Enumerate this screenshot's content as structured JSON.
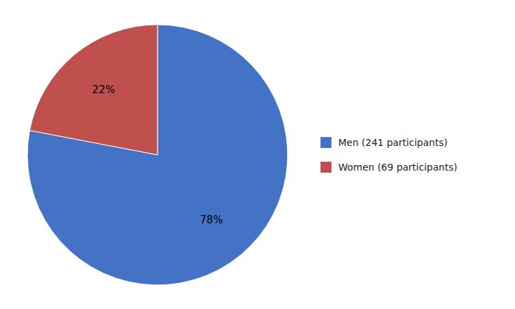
{
  "chart_data": {
    "type": "pie",
    "categories": [
      "Men (241 participants)",
      "Women (69 participants)"
    ],
    "values": [
      78,
      22
    ],
    "value_labels": [
      "78%",
      "22%"
    ],
    "colors": [
      "#4472C4",
      "#C0504D"
    ],
    "data_labels": true,
    "legend": "right"
  }
}
